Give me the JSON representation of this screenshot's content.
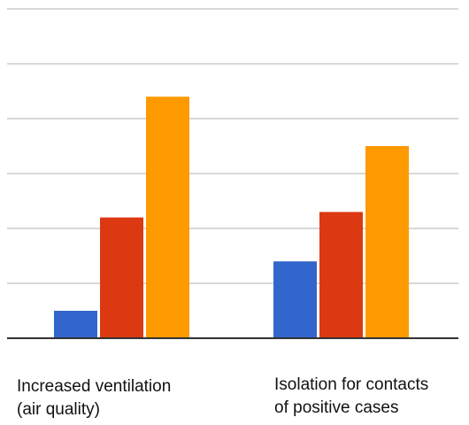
{
  "chart_data": {
    "type": "bar",
    "categories": [
      "Increased ventilation\n(air quality)",
      "Isolation for contacts\nof positive cases"
    ],
    "series": [
      {
        "color": "#3366cc",
        "values": [
          5,
          14
        ]
      },
      {
        "color": "#dc3912",
        "values": [
          22,
          23
        ]
      },
      {
        "color": "#ff9900",
        "values": [
          44,
          35
        ]
      }
    ],
    "ylim": [
      0,
      60
    ],
    "yticks": [
      0,
      10,
      20,
      30,
      40,
      50,
      60
    ],
    "grid": true,
    "title": "",
    "xlabel": "",
    "ylabel": ""
  }
}
